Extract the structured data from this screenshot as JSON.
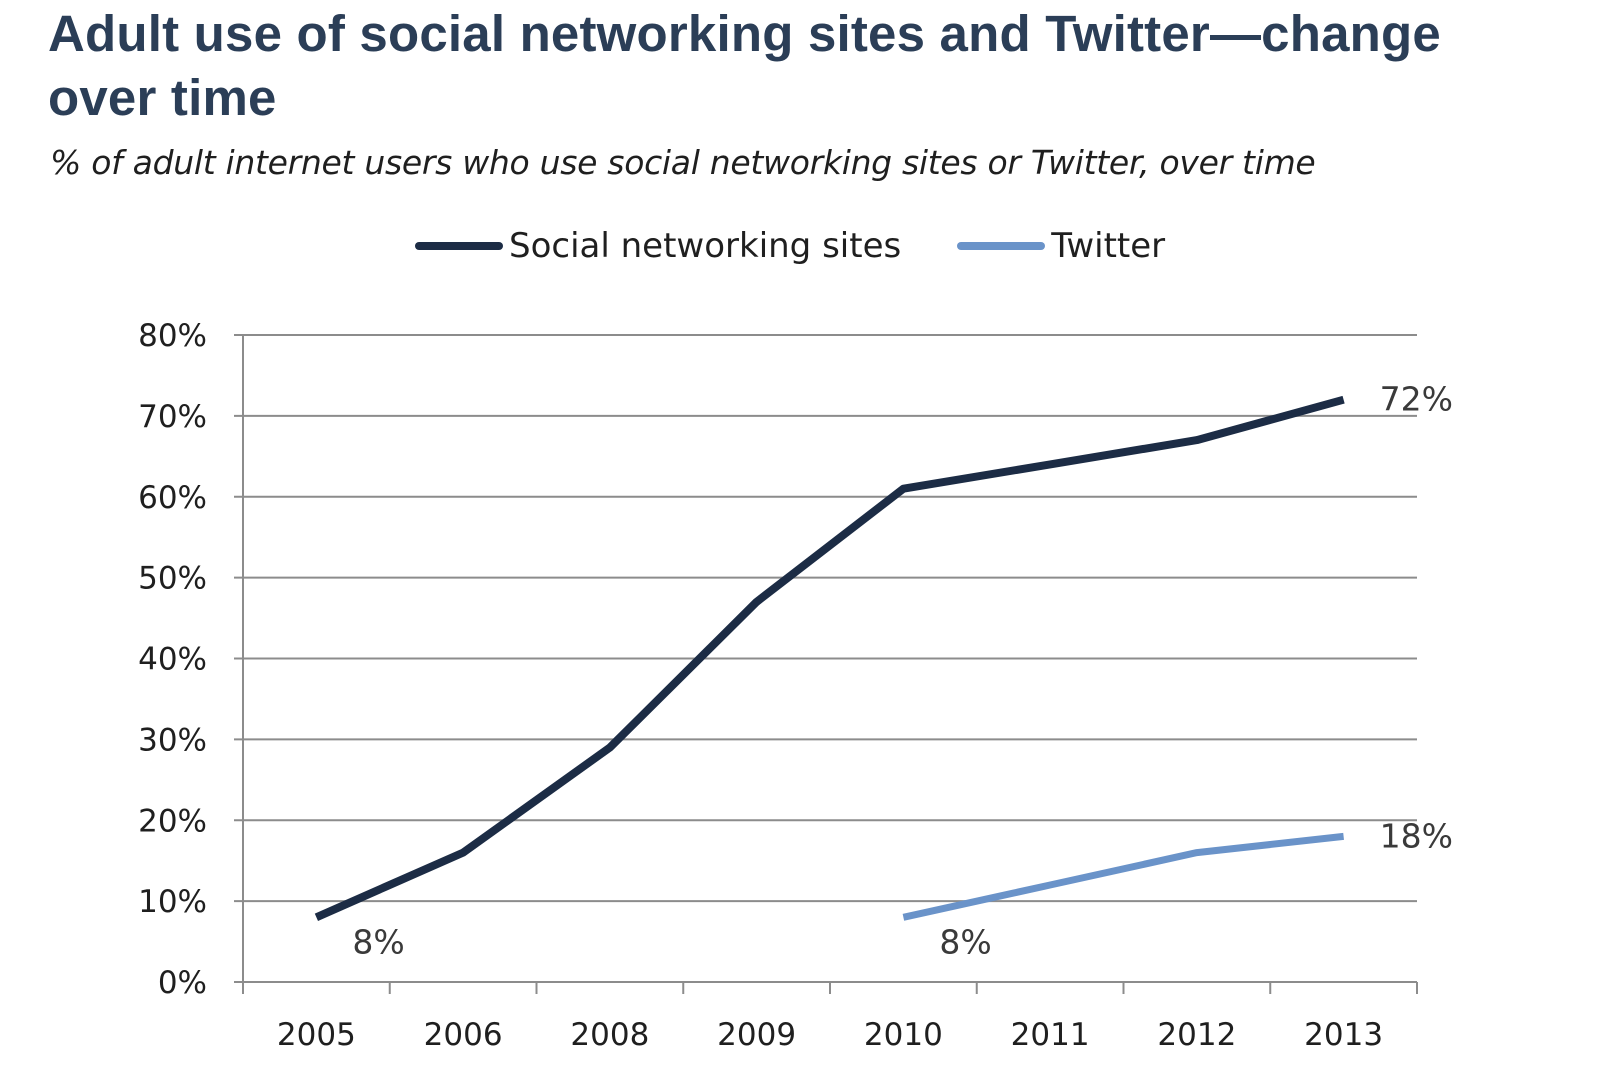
{
  "chart_data": {
    "type": "line",
    "title": "Adult use of social networking sites and Twitter—change over time",
    "subtitle": "% of adult internet users who use social networking sites or Twitter, over time",
    "categories": [
      "2005",
      "2006",
      "2008",
      "2009",
      "2010",
      "2011",
      "2012",
      "2013"
    ],
    "series": [
      {
        "name": "Social networking sites",
        "color": "#1c2c45",
        "values": [
          8,
          16,
          29,
          47,
          61,
          64,
          67,
          72
        ],
        "data_labels": [
          {
            "index": 0,
            "text": "8%"
          },
          {
            "index": 7,
            "text": "72%"
          }
        ]
      },
      {
        "name": "Twitter",
        "color": "#6a93c9",
        "values": [
          null,
          null,
          null,
          null,
          8,
          12,
          16,
          18
        ],
        "data_labels": [
          {
            "index": 4,
            "text": "8%"
          },
          {
            "index": 7,
            "text": "18%"
          }
        ]
      }
    ],
    "ylim": [
      0,
      80
    ],
    "yticks": [
      0,
      10,
      20,
      30,
      40,
      50,
      60,
      70,
      80
    ],
    "ytick_format": "%",
    "xlabel": "",
    "ylabel": "",
    "grid": true,
    "legend_position": "top"
  }
}
